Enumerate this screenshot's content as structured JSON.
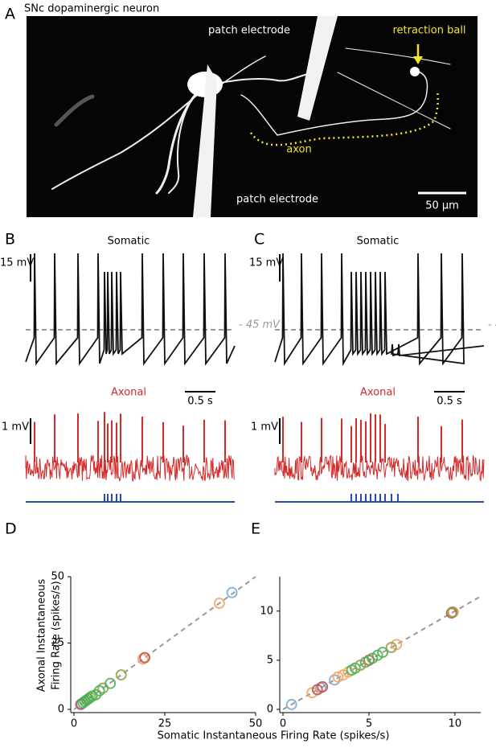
{
  "panel_a": {
    "label": "A",
    "title": "SNc dopaminergic neuron",
    "labels": [
      "patch electrode",
      "retraction ball",
      "axon",
      "patch electrode"
    ],
    "scale_bar": "50 μm"
  },
  "panel_b": {
    "label": "B",
    "somatic": "Somatic",
    "voltage_scale": "15 mV",
    "threshold": "- 45 mV",
    "time_scale": "0.5 s",
    "axonal": "Axonal",
    "axonal_scale": "1 mV"
  },
  "panel_c": {
    "label": "C",
    "somatic": "Somatic",
    "voltage_scale": "15 mV",
    "threshold": "- 45 mV",
    "time_scale": "0.5 s",
    "axonal": "Axonal",
    "axonal_scale": "1 mV"
  },
  "axis_labels": {
    "y": [
      "Axonal Instantaneous",
      "Firing Rate (spikes/s)"
    ],
    "x": "Somatic Instantaneous Firing Rate (spikes/s)"
  },
  "chart_data": [
    {
      "type": "scatter",
      "panel_label": "D",
      "xlim": [
        0,
        50
      ],
      "ylim": [
        0,
        50
      ],
      "xticks": [
        0,
        25,
        50
      ],
      "yticks": [
        0,
        25,
        50
      ],
      "series": [
        {
          "color": "#7fa6d6",
          "x": [
            43.5,
            1.8
          ],
          "values": [
            44,
            1.8
          ]
        },
        {
          "color": "#f5a25d",
          "x": [
            40,
            19
          ],
          "values": [
            40,
            19
          ]
        },
        {
          "color": "#c0504d",
          "x": [
            19.5,
            2
          ],
          "values": [
            19.5,
            2
          ]
        },
        {
          "color": "#8fa04a",
          "x": [
            13,
            8,
            4.5
          ],
          "values": [
            13,
            8,
            4.5
          ]
        },
        {
          "color": "#4caf50",
          "x": [
            10,
            7,
            6,
            5,
            4,
            3.5,
            3,
            2.5
          ],
          "values": [
            9.8,
            7,
            5.5,
            5,
            4,
            3.5,
            3,
            2.5
          ]
        }
      ]
    },
    {
      "type": "scatter",
      "panel_label": "E",
      "xlim": [
        0,
        11.5
      ],
      "ylim": [
        0,
        13.5
      ],
      "xticks": [
        0,
        5,
        10
      ],
      "yticks": [
        0,
        5,
        10
      ],
      "series": [
        {
          "color": "#7fa6d6",
          "x": [
            0.5,
            2.2,
            3
          ],
          "values": [
            0.5,
            2.2,
            3
          ]
        },
        {
          "color": "#f5a25d",
          "x": [
            1.7,
            3.2,
            3.5,
            3.8,
            6.6,
            9.9
          ],
          "values": [
            1.7,
            3.3,
            3.5,
            3.8,
            6.6,
            9.9
          ]
        },
        {
          "color": "#c0504d",
          "x": [
            2,
            2.3,
            5,
            9.8
          ],
          "values": [
            2,
            2.3,
            5,
            9.8
          ]
        },
        {
          "color": "#4caf50",
          "x": [
            4,
            4.2,
            4.8,
            5.2,
            5.5,
            5.8
          ],
          "values": [
            4,
            4.2,
            4.8,
            5.2,
            5.5,
            5.8
          ]
        },
        {
          "color": "#8fa04a",
          "x": [
            4.5,
            6.3,
            9.85
          ],
          "values": [
            4.5,
            6.3,
            9.9
          ]
        }
      ]
    }
  ]
}
